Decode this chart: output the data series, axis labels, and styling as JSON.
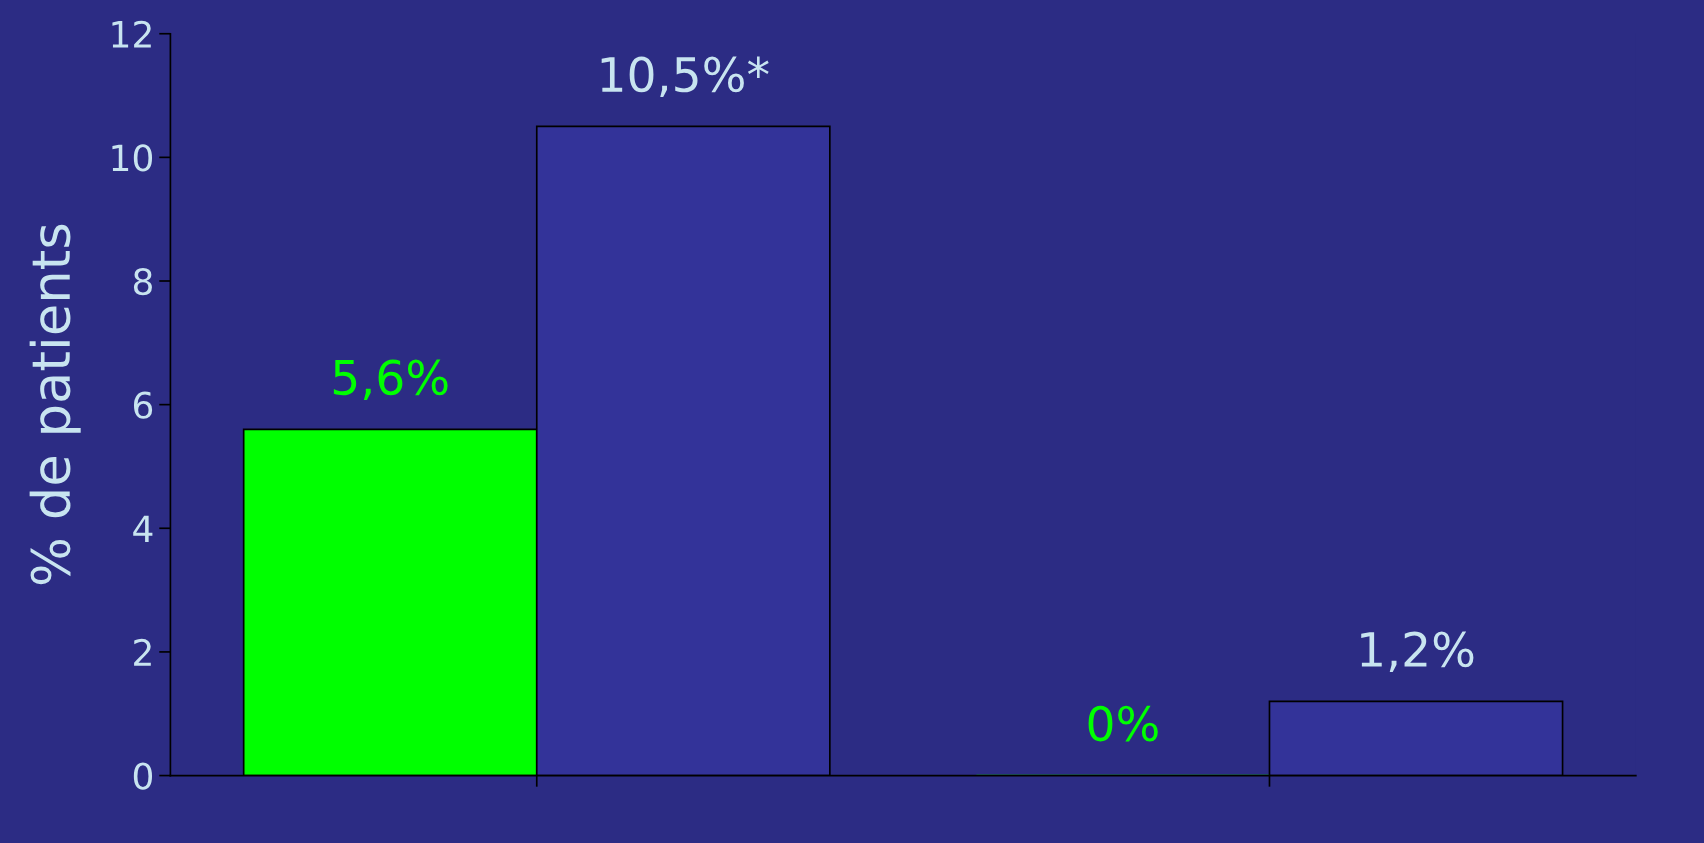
{
  "chart_data": {
    "type": "bar",
    "ylabel": "% de patients",
    "categories": [
      null,
      null
    ],
    "series": [
      {
        "color": "#00ff00",
        "values": [
          5.6,
          0
        ],
        "value_labels": [
          "5,6%",
          "0%"
        ]
      },
      {
        "color": "#333399",
        "values": [
          10.5,
          1.2
        ],
        "value_labels": [
          "10,5%*",
          "1,2%"
        ]
      }
    ],
    "ylim": [
      0,
      12
    ],
    "yticks": [
      0,
      2,
      4,
      6,
      8,
      10,
      12
    ],
    "grid": false
  }
}
